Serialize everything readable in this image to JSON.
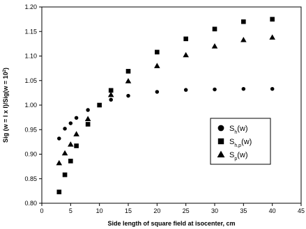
{
  "chart_data": {
    "type": "scatter",
    "xlabel": "Side length of square field at isocenter, cm",
    "ylabel_parts": [
      "Sig (w = l x l)/Sig(w = 10",
      "2",
      ")"
    ],
    "xlim": [
      0,
      45
    ],
    "ylim": [
      0.8,
      1.2
    ],
    "xticks": [
      "0",
      "5",
      "10",
      "15",
      "20",
      "25",
      "30",
      "35",
      "40",
      "45"
    ],
    "yticks": [
      "0.80",
      "0.85",
      "0.90",
      "0.95",
      "1.00",
      "1.05",
      "1.10",
      "1.15",
      "1.20"
    ],
    "grid": false,
    "legend_position": "right-middle",
    "series": [
      {
        "name": "Sh(w)",
        "label_main": "S",
        "label_sub": "h",
        "label_tail": "(w)",
        "marker": "circle",
        "x": [
          3,
          4,
          5,
          6,
          8,
          12,
          15,
          20,
          25,
          30,
          35,
          40
        ],
        "y": [
          0.932,
          0.952,
          0.963,
          0.974,
          0.99,
          1.011,
          1.019,
          1.027,
          1.031,
          1.032,
          1.033,
          1.033
        ]
      },
      {
        "name": "Sh,p(w)",
        "label_main": "S",
        "label_sub": "h,p",
        "label_tail": "(w)",
        "marker": "square",
        "x": [
          3,
          4,
          5,
          6,
          8,
          10,
          12,
          15,
          20,
          25,
          30,
          35,
          40
        ],
        "y": [
          0.823,
          0.858,
          0.886,
          0.917,
          0.961,
          1.0,
          1.03,
          1.069,
          1.108,
          1.135,
          1.155,
          1.17,
          1.175
        ]
      },
      {
        "name": "Sp(w)",
        "label_main": "S",
        "label_sub": "p",
        "label_tail": "(w)",
        "marker": "triangle",
        "x": [
          3,
          4,
          5,
          6,
          8,
          12,
          15,
          20,
          25,
          30,
          35,
          40
        ],
        "y": [
          0.882,
          0.902,
          0.92,
          0.941,
          0.972,
          1.021,
          1.049,
          1.08,
          1.102,
          1.12,
          1.133,
          1.138
        ]
      }
    ]
  }
}
